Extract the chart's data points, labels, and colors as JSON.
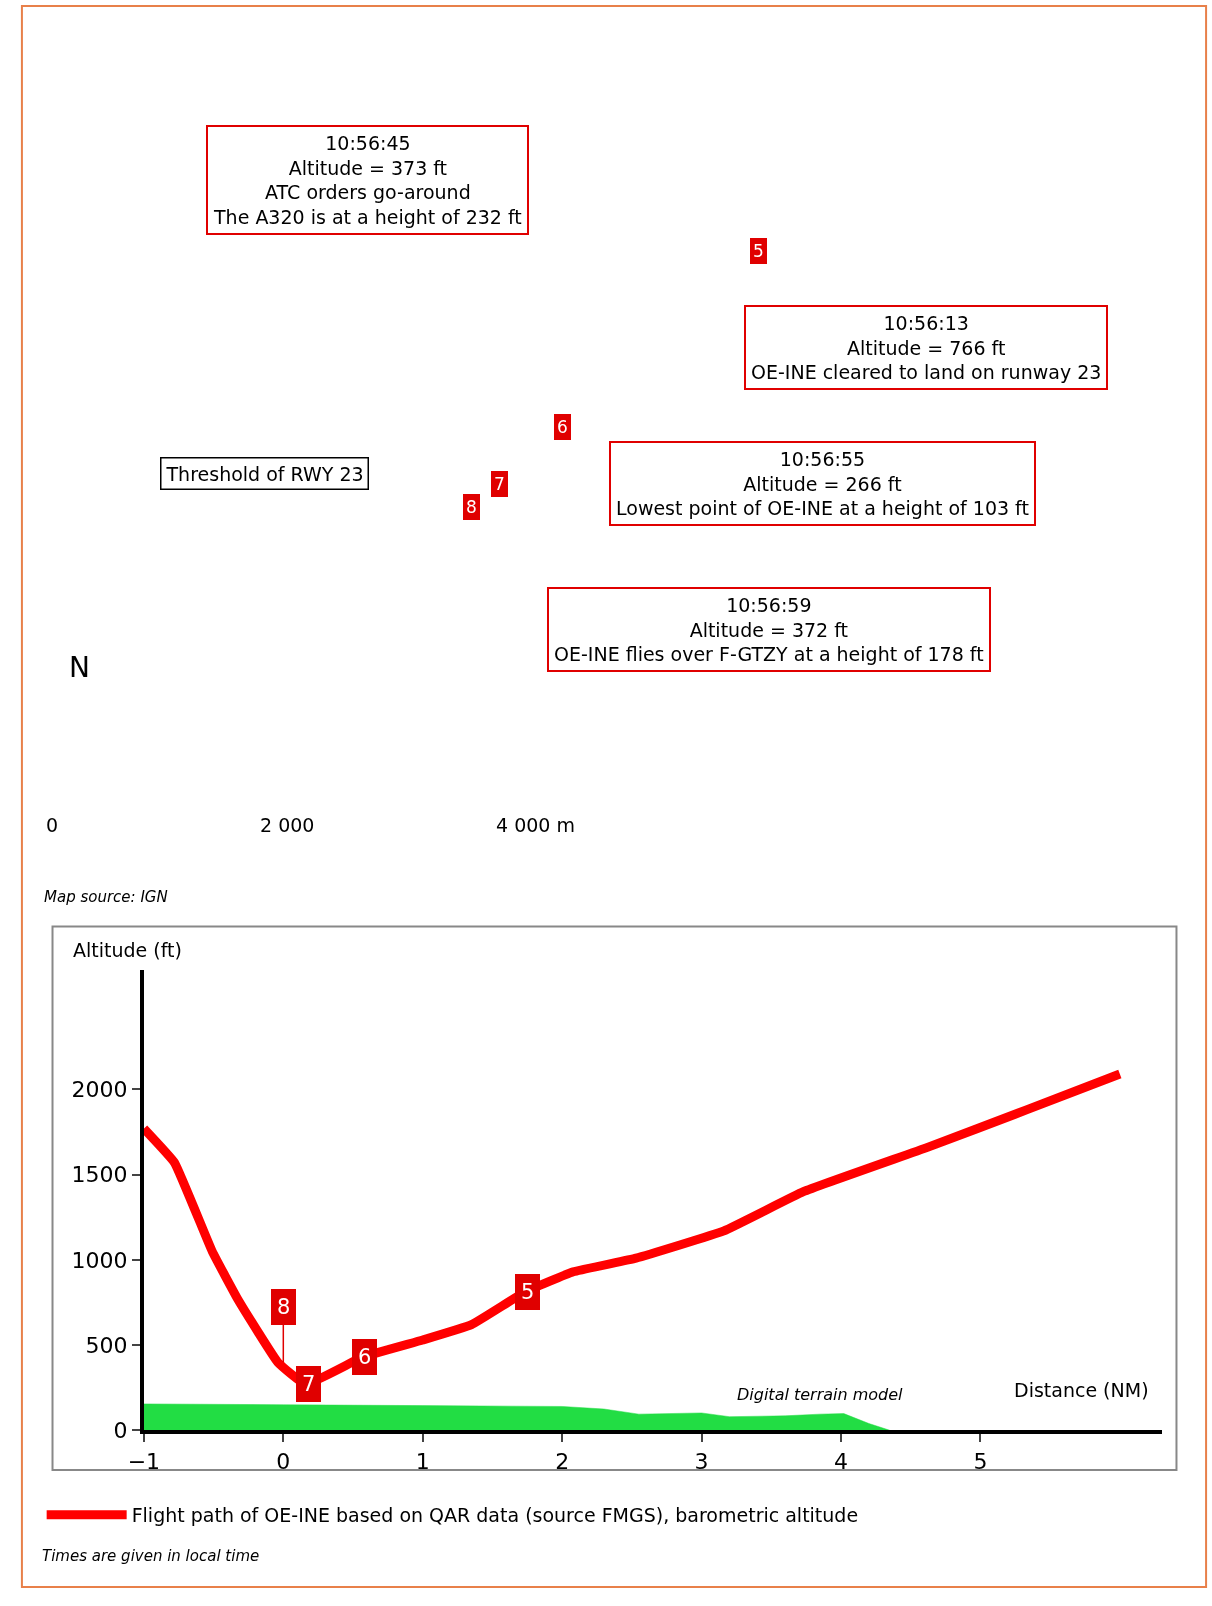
{
  "chart_data": [
    {
      "type": "other",
      "annotations": [
        "10:56:45\nAltitude = 373 ft\nATC orders go-around\nThe A320 is at a height of 232 ft",
        "10:56:13\nAltitude = 766 ft\nOE-INE cleared to land on runway 23",
        "10:56:55\nAltitude = 266 ft\nLowest point of OE-INE at a height of 103 ft",
        "10:56:59\nAltitude = 372 ft\nOE-INE flies over F-GTZY at a height of 178 ft",
        "Threshold of RWY 23",
        "5",
        "6",
        "7",
        "8",
        "N",
        "0",
        "2 000",
        "4 000 m",
        "Map source: IGN"
      ]
    },
    {
      "type": "line",
      "xlabel": "Distance (NM)",
      "ylabel": "Altitude (ft)",
      "xlim": [
        -1,
        6.3
      ],
      "ylim": [
        0,
        2700
      ],
      "xticks": [
        {
          "value": -1,
          "label": "−1"
        },
        0,
        1,
        2,
        3,
        4,
        5
      ],
      "yticks": [
        0,
        500,
        1000,
        1500,
        2000
      ],
      "legend": "bottom",
      "series": [
        {
          "name": "Flight path of OE-INE based on QAR data (source FMGS), barometric altitude",
          "color": "#ff0000",
          "x": [
            -1,
            -0.78,
            -0.51,
            -0.32,
            -0.04,
            0.16,
            0.57,
            1.0,
            1.35,
            1.73,
            2.08,
            2.53,
            3.16,
            3.73,
            4.62,
            5.33,
            6.0
          ],
          "values": [
            1770,
            1570,
            1050,
            760,
            400,
            270,
            430,
            530,
            620,
            810,
            930,
            1010,
            1170,
            1400,
            1660,
            1880,
            2090
          ]
        },
        {
          "name": "Digital terrain model",
          "type": "area",
          "color": "#22dd44",
          "x": [
            -1,
            0,
            1,
            2,
            2.3,
            2.55,
            3.0,
            3.2,
            3.6,
            3.85,
            4.02,
            4.2,
            4.35
          ],
          "values": [
            155,
            150,
            145,
            140,
            125,
            95,
            102,
            80,
            85,
            95,
            98,
            40,
            0
          ]
        }
      ],
      "annotations": [
        {
          "text": "5",
          "x": 1.75,
          "y": 810
        },
        {
          "text": "6",
          "x": 0.58,
          "y": 430
        },
        {
          "text": "7",
          "x": 0.18,
          "y": 270
        },
        {
          "text": "8",
          "x": 0,
          "y": 400
        },
        "Times are given in local time"
      ]
    }
  ]
}
